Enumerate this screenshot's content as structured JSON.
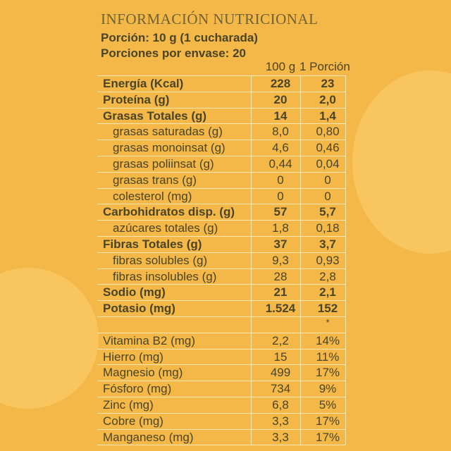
{
  "header": {
    "title": "INFORMACIÓN NUTRICIONAL",
    "portion": "Porción: 10 g (1 cucharada)",
    "servings": "Porciones por envase: 20"
  },
  "table": {
    "columns": [
      "100 g",
      "1 Porción"
    ],
    "rows": [
      {
        "label": "Energía (Kcal)",
        "values": [
          "228",
          "23"
        ]
      },
      {
        "label": "Proteína (g)",
        "values": [
          "20",
          "2,0"
        ]
      },
      {
        "label": "Grasas Totales (g)",
        "values": [
          "14",
          "1,4"
        ]
      },
      {
        "label": "grasas saturadas (g)",
        "values": [
          "8,0",
          "0,80"
        ]
      },
      {
        "label": "grasas monoinsat (g)",
        "values": [
          "4,6",
          "0,46"
        ]
      },
      {
        "label": "grasas poliinsat (g)",
        "values": [
          "0,44",
          "0,04"
        ]
      },
      {
        "label": "grasas trans (g)",
        "values": [
          "0",
          "0"
        ]
      },
      {
        "label": "colesterol (mg)",
        "values": [
          "0",
          "0"
        ]
      },
      {
        "label": "Carbohidratos disp. (g)",
        "values": [
          "57",
          "5,7"
        ]
      },
      {
        "label": "azúcares totales (g)",
        "values": [
          "1,8",
          "0,18"
        ]
      },
      {
        "label": "Fibras Totales (g)",
        "values": [
          "37",
          "3,7"
        ]
      },
      {
        "label": "fibras solubles (g)",
        "values": [
          "9,3",
          "0,93"
        ]
      },
      {
        "label": "fibras insolubles (g)",
        "values": [
          "28",
          "2,8"
        ]
      },
      {
        "label": "Sodio (mg)",
        "values": [
          "21",
          "2,1"
        ]
      },
      {
        "label": "Potasio (mg)",
        "values": [
          "1.524",
          "152"
        ]
      }
    ],
    "note": "*",
    "minerals": [
      {
        "label": "Vitamina B2 (mg)",
        "values": [
          "2,2",
          "14%"
        ]
      },
      {
        "label": "Hierro (mg)",
        "values": [
          "15",
          "11%"
        ]
      },
      {
        "label": "Magnesio (mg)",
        "values": [
          "499",
          "17%"
        ]
      },
      {
        "label": "Fósforo (mg)",
        "values": [
          "734",
          "9%"
        ]
      },
      {
        "label": "Zinc (mg)",
        "values": [
          "6,8",
          "5%"
        ]
      },
      {
        "label": "Cobre (mg)",
        "values": [
          "3,3",
          "17%"
        ]
      },
      {
        "label": "Manganeso (mg)",
        "values": [
          "3,3",
          "17%"
        ]
      }
    ]
  }
}
